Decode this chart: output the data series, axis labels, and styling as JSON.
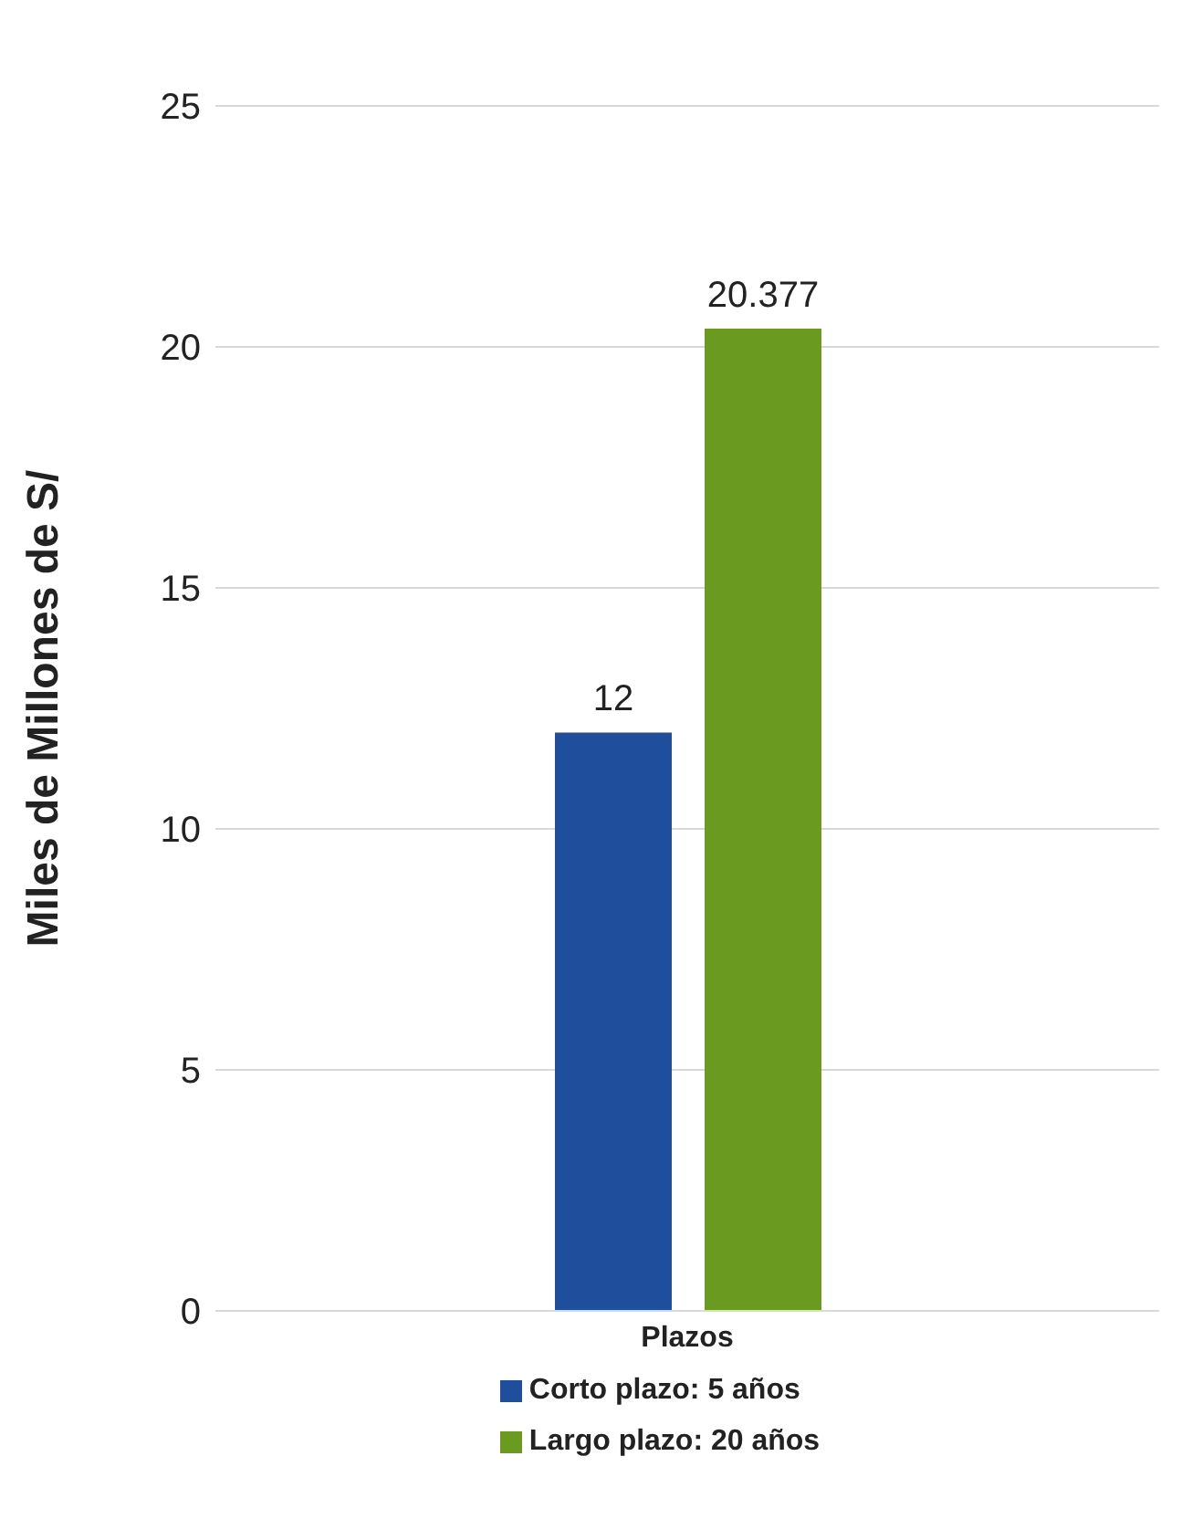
{
  "chart_data": {
    "type": "bar",
    "ylabel": "Miles de Millones de S/",
    "categories": [
      "Plazos"
    ],
    "series": [
      {
        "name": "Corto plazo: 5 años",
        "color": "#1f4e9c",
        "values": [
          12
        ]
      },
      {
        "name": "Largo plazo: 20 años",
        "color": "#6a9a1f",
        "values": [
          20.377
        ]
      }
    ],
    "ylim": [
      0,
      25
    ],
    "yticks": [
      0,
      5,
      10,
      15,
      20,
      25
    ],
    "grid": "y",
    "legend": "bottom",
    "data_labels": true
  }
}
